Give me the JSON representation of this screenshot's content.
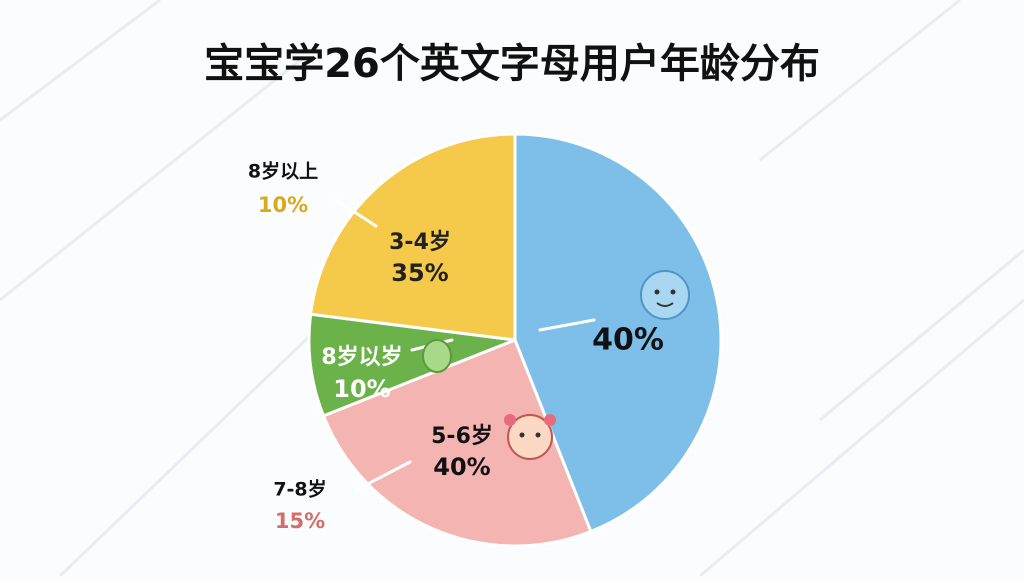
{
  "chart_data": {
    "type": "pie",
    "title": "宝宝学26个英文字母用户年龄分布",
    "categories": [
      null,
      "5-6岁",
      "8岁以岁",
      "3-4岁"
    ],
    "values": [
      44,
      25,
      8,
      23
    ],
    "colors": [
      "#7dbfe8",
      "#f4b4b2",
      "#6cb24a",
      "#f5c94a"
    ],
    "annotations": [
      {
        "text": "40%"
      },
      {
        "text": "40%"
      },
      {
        "text": "10%"
      },
      {
        "text": "35%"
      },
      {
        "text": "8岁以上"
      },
      {
        "text": "10%"
      },
      {
        "text": "7-8岁"
      },
      {
        "text": "15%"
      }
    ]
  }
}
